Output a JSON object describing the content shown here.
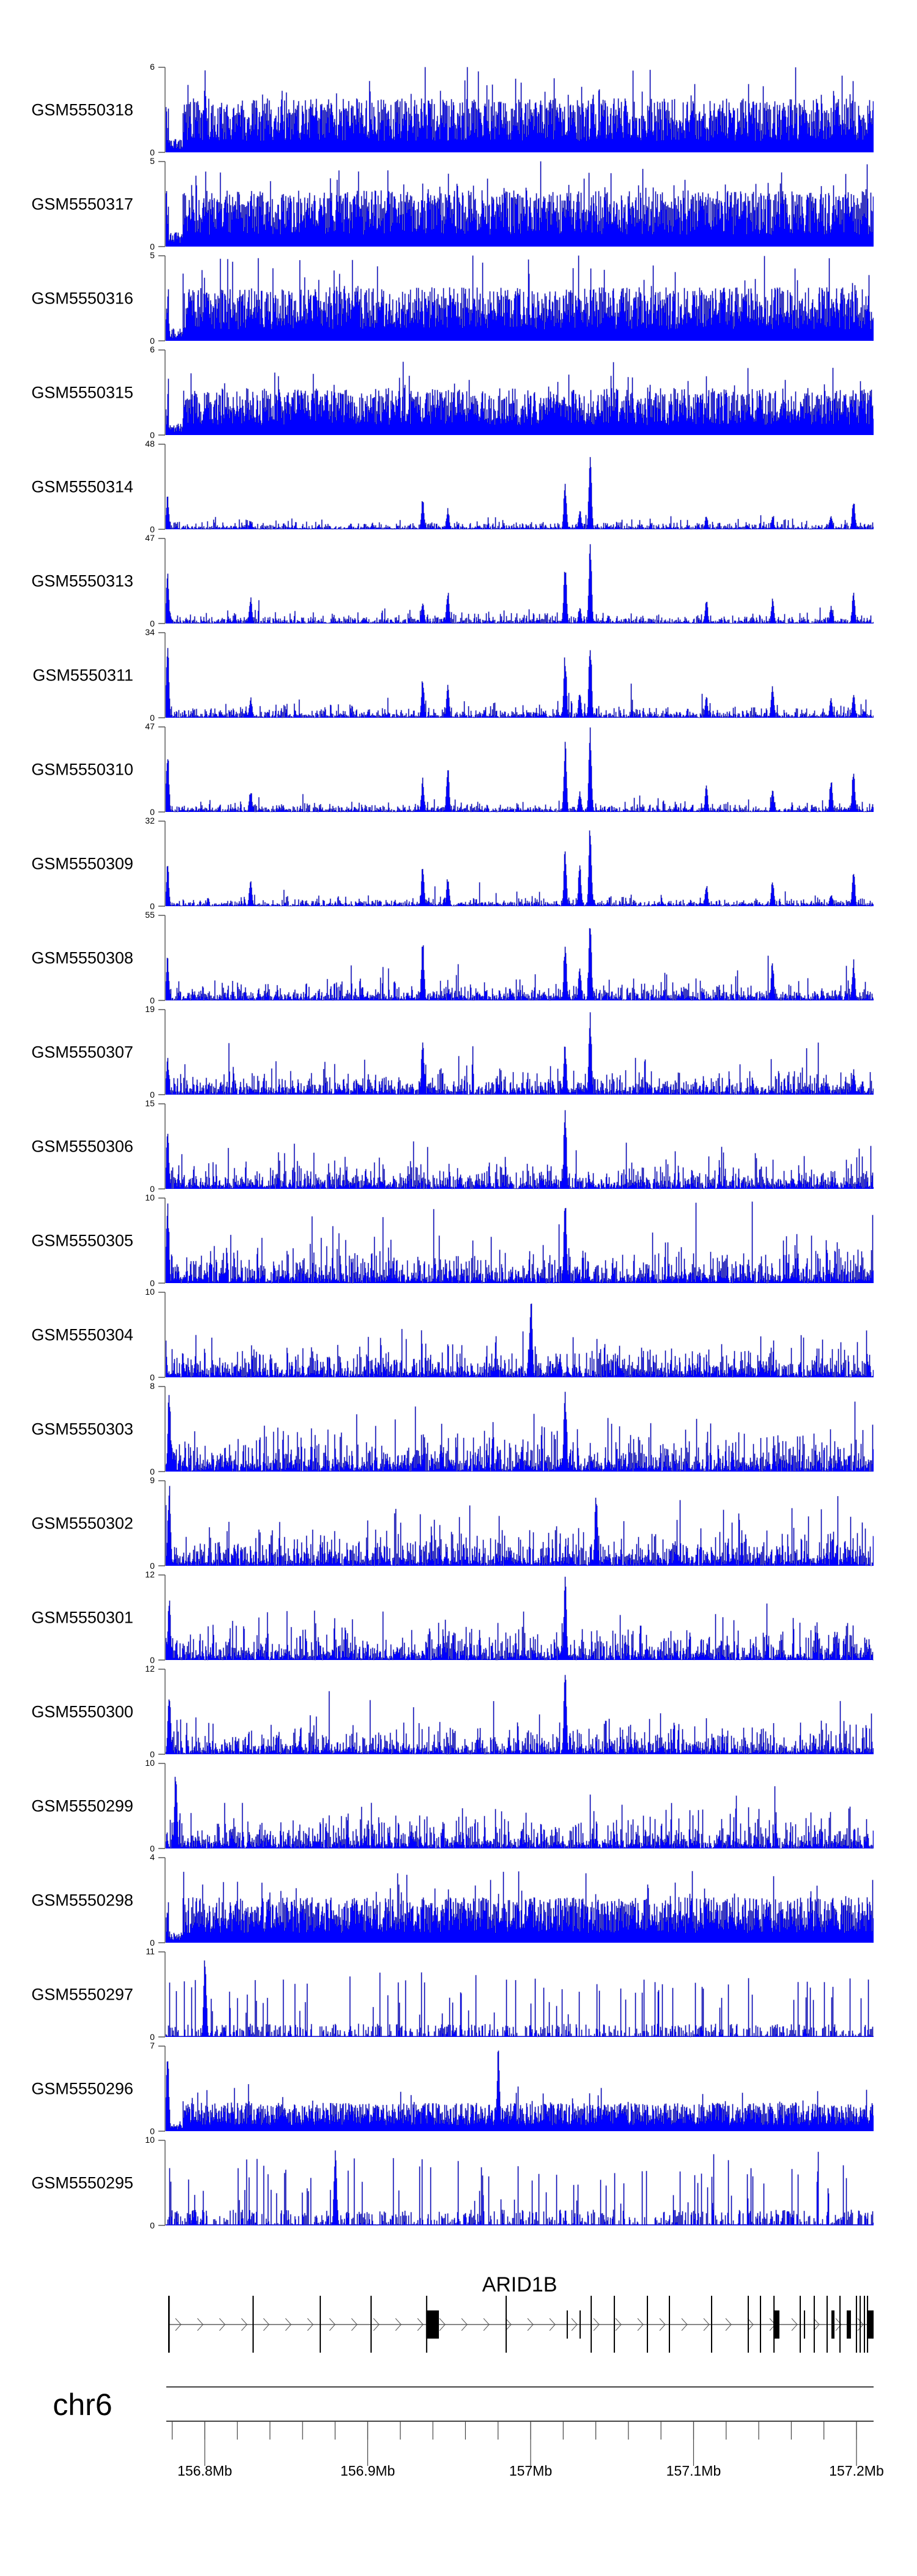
{
  "chart_data": {
    "type": "area",
    "title": "",
    "xlabel": "",
    "ylabel": "",
    "chromosome": "chr6",
    "xlim_mb": [
      156.776,
      157.2105
    ],
    "x_ticks_major": [
      "156.8Mb",
      "156.9Mb",
      "157Mb",
      "157.1Mb",
      "157.2Mb"
    ],
    "x_ticks_major_values": [
      156.8,
      156.9,
      157.0,
      157.1,
      157.2
    ],
    "x_tick_minor_step_mb": 0.02,
    "fill_color": "#0000FF",
    "line_color": "#00008B",
    "tracks": [
      {
        "name": "GSM5550318",
        "ymax": 6,
        "baseline": 2.3,
        "noise": "dense",
        "peaks": [
          [
            156.8,
            5.9
          ]
        ]
      },
      {
        "name": "GSM5550317",
        "ymax": 5,
        "baseline": 2.0,
        "noise": "dense",
        "peaks": []
      },
      {
        "name": "GSM5550316",
        "ymax": 5,
        "baseline": 1.9,
        "noise": "dense",
        "peaks": []
      },
      {
        "name": "GSM5550315",
        "ymax": 6,
        "baseline": 2.0,
        "noise": "dense",
        "peaks": []
      },
      {
        "name": "GSM5550314",
        "ymax": 48,
        "baseline": 1.6,
        "noise": "sparse",
        "peaks": [
          [
            156.777,
            20
          ],
          [
            156.828,
            5
          ],
          [
            156.9336,
            18
          ],
          [
            156.949,
            12
          ],
          [
            157.021,
            28
          ],
          [
            157.03,
            12
          ],
          [
            157.0364,
            48
          ],
          [
            157.1077,
            8
          ],
          [
            157.1483,
            7
          ],
          [
            157.1842,
            9
          ],
          [
            157.198,
            19
          ]
        ]
      },
      {
        "name": "GSM5550313",
        "ymax": 47,
        "baseline": 1.8,
        "noise": "sparse",
        "peaks": [
          [
            156.777,
            29
          ],
          [
            156.828,
            16
          ],
          [
            156.9336,
            14
          ],
          [
            156.949,
            19
          ],
          [
            157.021,
            36
          ],
          [
            157.03,
            10
          ],
          [
            157.0364,
            47
          ],
          [
            157.1077,
            14
          ],
          [
            157.1483,
            14
          ],
          [
            157.1842,
            10
          ],
          [
            157.198,
            18
          ]
        ]
      },
      {
        "name": "GSM5550311",
        "ymax": 34,
        "baseline": 1.6,
        "noise": "sparse",
        "peaks": [
          [
            156.777,
            30
          ],
          [
            156.828,
            9
          ],
          [
            156.9336,
            17
          ],
          [
            156.949,
            14
          ],
          [
            157.021,
            27
          ],
          [
            157.03,
            12
          ],
          [
            157.0364,
            34
          ],
          [
            157.1077,
            9
          ],
          [
            157.1483,
            14
          ],
          [
            157.1842,
            8
          ],
          [
            157.198,
            11
          ]
        ]
      },
      {
        "name": "GSM5550310",
        "ymax": 47,
        "baseline": 1.8,
        "noise": "sparse",
        "peaks": [
          [
            156.777,
            37
          ],
          [
            156.828,
            13
          ],
          [
            156.9336,
            19
          ],
          [
            156.949,
            28
          ],
          [
            157.021,
            40
          ],
          [
            157.03,
            12
          ],
          [
            157.0364,
            47
          ],
          [
            157.1077,
            15
          ],
          [
            157.1483,
            13
          ],
          [
            157.1842,
            20
          ],
          [
            157.198,
            25
          ]
        ]
      },
      {
        "name": "GSM5550309",
        "ymax": 32,
        "baseline": 1.1,
        "noise": "sparse",
        "peaks": [
          [
            156.777,
            16
          ],
          [
            156.828,
            11
          ],
          [
            156.9336,
            16
          ],
          [
            156.949,
            12
          ],
          [
            157.021,
            22
          ],
          [
            157.03,
            17
          ],
          [
            157.0364,
            32
          ],
          [
            157.1077,
            9
          ],
          [
            157.1483,
            10
          ],
          [
            157.1842,
            5
          ],
          [
            157.198,
            15
          ]
        ]
      },
      {
        "name": "GSM5550308",
        "ymax": 55,
        "baseline": 4.0,
        "noise": "sparse",
        "peaks": [
          [
            156.777,
            30
          ],
          [
            156.9336,
            40
          ],
          [
            157.021,
            40
          ],
          [
            157.03,
            22
          ],
          [
            157.0364,
            55
          ],
          [
            157.1483,
            27
          ],
          [
            157.198,
            27
          ]
        ]
      },
      {
        "name": "GSM5550307",
        "ymax": 19,
        "baseline": 1.8,
        "noise": "sparse",
        "peaks": [
          [
            156.777,
            9
          ],
          [
            156.9336,
            13
          ],
          [
            157.021,
            12
          ],
          [
            157.0364,
            19
          ],
          [
            157.198,
            6
          ]
        ]
      },
      {
        "name": "GSM5550306",
        "ymax": 15,
        "baseline": 1.5,
        "noise": "sparse",
        "peaks": [
          [
            156.777,
            11
          ],
          [
            157.021,
            15
          ]
        ]
      },
      {
        "name": "GSM5550305",
        "ymax": 10,
        "baseline": 1.5,
        "noise": "sparse",
        "peaks": [
          [
            156.777,
            10
          ],
          [
            157.021,
            10
          ]
        ]
      },
      {
        "name": "GSM5550304",
        "ymax": 10,
        "baseline": 1.3,
        "noise": "sparse",
        "peaks": [
          [
            157.0,
            10
          ]
        ]
      },
      {
        "name": "GSM5550303",
        "ymax": 8,
        "baseline": 1.3,
        "noise": "sparse",
        "peaks": [
          [
            156.778,
            8
          ],
          [
            157.021,
            8
          ]
        ]
      },
      {
        "name": "GSM5550302",
        "ymax": 9,
        "baseline": 1.4,
        "noise": "sparse",
        "peaks": [
          [
            156.778,
            9
          ],
          [
            157.04,
            8
          ]
        ]
      },
      {
        "name": "GSM5550301",
        "ymax": 12,
        "baseline": 1.5,
        "noise": "sparse",
        "peaks": [
          [
            156.778,
            10
          ],
          [
            157.021,
            12
          ]
        ]
      },
      {
        "name": "GSM5550300",
        "ymax": 12,
        "baseline": 1.4,
        "noise": "sparse",
        "peaks": [
          [
            156.778,
            10
          ],
          [
            157.021,
            12
          ]
        ]
      },
      {
        "name": "GSM5550299",
        "ymax": 10,
        "baseline": 1.3,
        "noise": "sparse",
        "peaks": [
          [
            156.782,
            10
          ]
        ]
      },
      {
        "name": "GSM5550298",
        "ymax": 4,
        "baseline": 1.3,
        "noise": "dense",
        "peaks": []
      },
      {
        "name": "GSM5550297",
        "ymax": 11,
        "baseline": 1.2,
        "noise": "spiky",
        "peaks": [
          [
            156.8,
            11
          ]
        ]
      },
      {
        "name": "GSM5550296",
        "ymax": 7,
        "baseline": 1.4,
        "noise": "dense",
        "peaks": [
          [
            156.777,
            6.5
          ],
          [
            156.98,
            7
          ]
        ]
      },
      {
        "name": "GSM5550295",
        "ymax": 10,
        "baseline": 1.3,
        "noise": "spiky",
        "peaks": [
          [
            156.88,
            10
          ]
        ]
      }
    ],
    "gene": {
      "name": "ARID1B",
      "strand": "+",
      "exons": [
        [
          156.7775,
          156.7785,
          "full"
        ],
        [
          156.8293,
          156.8296,
          "full"
        ],
        [
          156.8705,
          156.8708,
          "full"
        ],
        [
          156.9017,
          156.902,
          "full"
        ],
        [
          156.9358,
          156.9359,
          "full"
        ],
        [
          156.9358,
          156.9437,
          "half"
        ],
        [
          156.9846,
          156.9849,
          "full"
        ],
        [
          157.0221,
          157.0223,
          "half"
        ],
        [
          157.03,
          157.0302,
          "half"
        ],
        [
          157.0368,
          157.0371,
          "full"
        ],
        [
          157.051,
          157.0513,
          "full"
        ],
        [
          157.0713,
          157.0717,
          "full"
        ],
        [
          157.0848,
          157.0851,
          "full"
        ],
        [
          157.1107,
          157.1111,
          "full"
        ],
        [
          157.1332,
          157.1335,
          "full"
        ],
        [
          157.1407,
          157.141,
          "full"
        ],
        [
          157.149,
          157.1527,
          "half"
        ],
        [
          157.149,
          157.1496,
          "full"
        ],
        [
          157.1651,
          157.1654,
          "full"
        ],
        [
          157.1677,
          157.168,
          "half"
        ],
        [
          157.1737,
          157.174,
          "full"
        ],
        [
          157.1816,
          157.1819,
          "full"
        ],
        [
          157.1846,
          157.1865,
          "half"
        ],
        [
          157.1895,
          157.1898,
          "full"
        ],
        [
          157.194,
          157.1966,
          "half"
        ],
        [
          157.1996,
          157.1999,
          "full"
        ],
        [
          157.2019,
          157.2022,
          "full"
        ],
        [
          157.2045,
          157.2048,
          "full"
        ],
        [
          157.2064,
          157.2105,
          "half"
        ],
        [
          157.2064,
          157.2071,
          "full"
        ]
      ]
    }
  }
}
